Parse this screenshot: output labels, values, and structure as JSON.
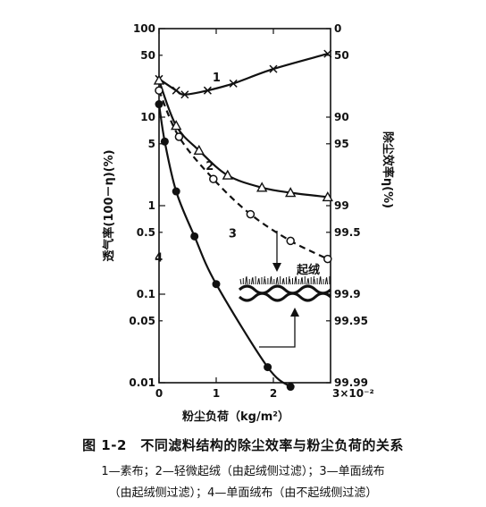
{
  "chart_data": {
    "type": "line",
    "title": "",
    "xlabel": "粉尘负荷（kg/m²）",
    "x_multiplier_label": "3×10⁻²",
    "ylabel": "透气率(100－η)(%)",
    "ylabel_right": "除尘效率η(%)",
    "yscale": "log",
    "xlim": [
      0,
      3
    ],
    "ylim": [
      0.01,
      100
    ],
    "x_ticks": [
      "0",
      "1",
      "2"
    ],
    "y_ticks": [
      "100",
      "50",
      "10",
      "5",
      "1",
      "0.5",
      "0.1",
      "0.05",
      "0.01"
    ],
    "y_right_ticks": [
      "0",
      "50",
      "90",
      "95",
      "99",
      "99.5",
      "99.9",
      "99.95",
      "99.99"
    ],
    "series": [
      {
        "name": "1",
        "marker": "x",
        "dashed": false,
        "x": [
          0,
          0.3,
          0.45,
          0.85,
          1.3,
          2.0,
          2.95
        ],
        "y": [
          27,
          20,
          18,
          20,
          24,
          35,
          52
        ]
      },
      {
        "name": "2",
        "marker": "triangle",
        "dashed": false,
        "x": [
          0,
          0.3,
          0.7,
          1.2,
          1.8,
          2.3,
          2.95
        ],
        "y": [
          26,
          8,
          4.2,
          2.2,
          1.6,
          1.4,
          1.25
        ]
      },
      {
        "name": "3",
        "marker": "circle-open",
        "dashed": true,
        "x": [
          0,
          0.35,
          0.95,
          1.6,
          2.3,
          2.95
        ],
        "y": [
          20,
          6,
          2.0,
          0.8,
          0.4,
          0.25
        ]
      },
      {
        "name": "4",
        "marker": "circle-filled",
        "dashed": false,
        "x": [
          0,
          0.1,
          0.3,
          0.62,
          1.0,
          1.9,
          2.3
        ],
        "y": [
          14,
          5.3,
          1.45,
          0.45,
          0.13,
          0.015,
          0.009
        ]
      }
    ],
    "annotations": [
      "起绒"
    ]
  },
  "caption": {
    "title": "图 1-2　不同滤料结构的除尘效率与粉尘负荷的关系",
    "line1": "1—素布；2—轻微起绒（由起绒侧过滤）；3—单面绒布",
    "line2": "（由起绒侧过滤）；4—单面绒布（由不起绒侧过滤）"
  }
}
